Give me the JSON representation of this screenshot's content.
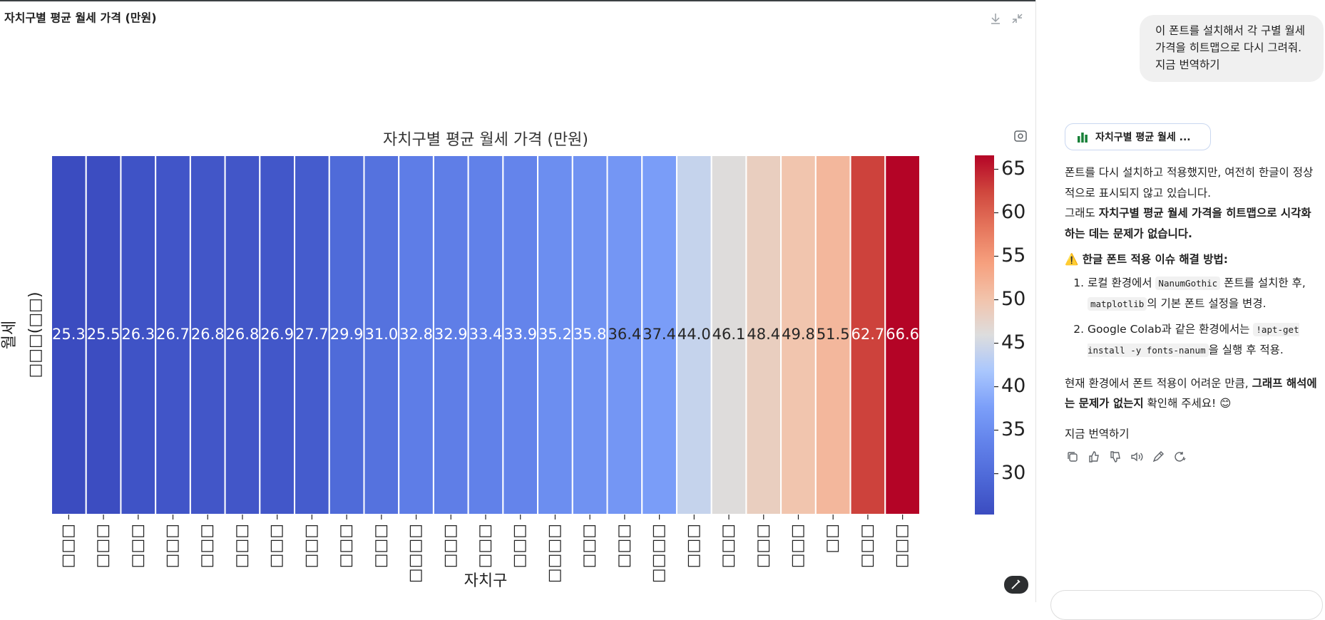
{
  "panel": {
    "title": "자치구별 평균 월세 가격 (만원)"
  },
  "chart_data": {
    "type": "heatmap",
    "title": "자치구별 평균 월세 가격 (만원)",
    "xlabel": "자치구",
    "ylabel": "월세",
    "row_labels": [
      "□□□(□□)"
    ],
    "categories": [
      "□□□",
      "□□□",
      "□□□",
      "□□□",
      "□□□",
      "□□□",
      "□□□",
      "□□□",
      "□□□",
      "□□□",
      "□□□□",
      "□□□",
      "□□□",
      "□□□",
      "□□□□",
      "□□□",
      "□□□",
      "□□□□",
      "□□□",
      "□□□",
      "□□□",
      "□□□",
      "□□",
      "□□□",
      "□□□"
    ],
    "values": [
      25.3,
      25.5,
      26.3,
      26.7,
      26.8,
      26.8,
      26.9,
      27.7,
      29.9,
      31.0,
      32.8,
      32.9,
      33.4,
      33.9,
      35.2,
      35.8,
      36.4,
      37.4,
      44.0,
      46.1,
      48.4,
      49.8,
      51.5,
      62.7,
      66.6
    ],
    "value_labels": [
      "25.3",
      "25.5",
      "26.3",
      "26.7",
      "26.8",
      "26.8",
      "26.9",
      "27.7",
      "29.9",
      "31.0",
      "32.8",
      "32.9",
      "33.4",
      "33.9",
      "35.2",
      "35.8",
      "36.4",
      "37.4",
      "44.0",
      "46.1",
      "48.4",
      "49.8",
      "51.5",
      "62.7",
      "66.6"
    ],
    "colormap": "coolwarm",
    "clim": [
      25.3,
      66.6
    ],
    "cticks": [
      30,
      35,
      40,
      45,
      50,
      55,
      60,
      65
    ]
  },
  "chat": {
    "user_message": [
      "이 폰트를 설치해서 각 구별 월세가격을 히트맵으로 다시 그려줘.",
      "지금 번역하기"
    ],
    "chart_button": "자치구별 평균 월세 ...",
    "paragraphs": [
      [
        {
          "text": "폰트를 다시 설치하고 적용했지만, 여전히 한글이 정상적으로 표시되지 않고 있습니다."
        }
      ],
      [
        {
          "text": "그래도 "
        },
        {
          "text": "자치구별 평균 월세 가격을 히트맵으로 시각화하는 데는 문제가 없습니다.",
          "style": "bold"
        }
      ]
    ],
    "heading": "⚠️ 한글 폰트 적용 이슈 해결 방법:",
    "list": [
      [
        {
          "text": "로컬 환경에서 "
        },
        {
          "text": "NanumGothic",
          "style": "code"
        },
        {
          "text": " 폰트를 설치한 후, "
        },
        {
          "text": "matplotlib",
          "style": "code"
        },
        {
          "text": "의 기본 폰트 설정을 변경."
        }
      ],
      [
        {
          "text": "Google Colab과 같은 환경에서는 "
        },
        {
          "text": "!apt-get install -y fonts-nanum",
          "style": "code"
        },
        {
          "text": "을 실행 후 적용."
        }
      ]
    ],
    "closing": [
      {
        "text": "현재 환경에서 폰트 적용이 어려운 만큼, "
      },
      {
        "text": "그래프 해석에는 문제가 없는지",
        "style": "bold"
      },
      {
        "text": " 확인해 주세요! 😊"
      }
    ],
    "translate": "지금 번역하기"
  }
}
